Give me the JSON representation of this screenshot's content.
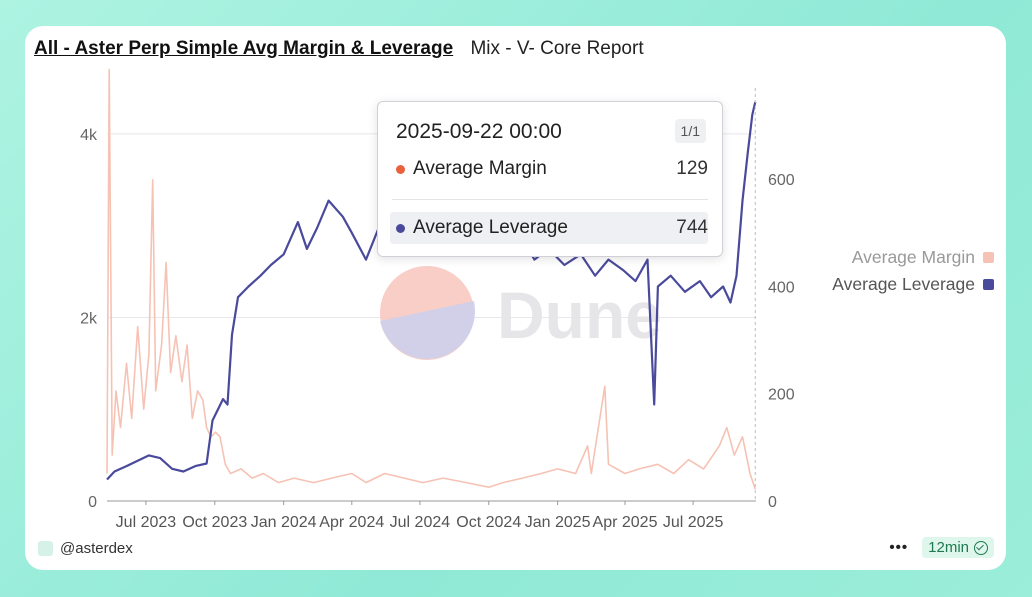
{
  "header": {
    "title": "All - Aster Perp Simple Avg Margin & Leverage",
    "subtitle": "Mix - V- Core Report"
  },
  "watermark": {
    "text": "Dune"
  },
  "legend": [
    {
      "label": "Average Margin",
      "color": "#f6c2b4"
    },
    {
      "label": "Average Leverage",
      "color": "#4a4a9c"
    }
  ],
  "tooltip": {
    "date": "2025-09-22 00:00",
    "page": "1/1",
    "rows": [
      {
        "label": "Average Margin",
        "value": "129",
        "color": "#e8603c"
      },
      {
        "label": "Average Leverage",
        "value": "744",
        "color": "#4a4a9c"
      }
    ]
  },
  "footer": {
    "author": "@asterdex",
    "age": "12min"
  },
  "chart_data": {
    "type": "line",
    "x_tick_labels": [
      "Jul 2023",
      "Oct 2023",
      "Jan 2024",
      "Apr 2024",
      "Jul 2024",
      "Oct 2024",
      "Jan 2025",
      "Apr 2025",
      "Jul 2025"
    ],
    "x_tick_dates": [
      "2023-07-01",
      "2023-10-01",
      "2024-01-01",
      "2024-04-01",
      "2024-07-01",
      "2024-10-01",
      "2025-01-01",
      "2025-04-01",
      "2025-07-01"
    ],
    "x_range": [
      "2023-05-10",
      "2025-09-23"
    ],
    "y_left": {
      "ticks": [
        "0",
        "2k",
        "4k"
      ],
      "tick_values": [
        0,
        2000,
        4000
      ],
      "range": [
        0,
        4500
      ]
    },
    "y_right": {
      "ticks": [
        "0",
        "200",
        "400",
        "600"
      ],
      "tick_values": [
        0,
        200,
        400,
        600
      ],
      "range": [
        0,
        770
      ]
    },
    "series": [
      {
        "name": "Average Margin",
        "axis": "left",
        "color": "#f6c2b4",
        "points": [
          [
            "2023-05-10",
            300
          ],
          [
            "2023-05-13",
            4700
          ],
          [
            "2023-05-17",
            500
          ],
          [
            "2023-05-22",
            1200
          ],
          [
            "2023-05-28",
            800
          ],
          [
            "2023-06-05",
            1500
          ],
          [
            "2023-06-12",
            900
          ],
          [
            "2023-06-20",
            1900
          ],
          [
            "2023-06-28",
            1000
          ],
          [
            "2023-07-05",
            1600
          ],
          [
            "2023-07-10",
            3500
          ],
          [
            "2023-07-14",
            1200
          ],
          [
            "2023-07-22",
            1700
          ],
          [
            "2023-07-28",
            2600
          ],
          [
            "2023-08-03",
            1400
          ],
          [
            "2023-08-10",
            1800
          ],
          [
            "2023-08-18",
            1300
          ],
          [
            "2023-08-25",
            1700
          ],
          [
            "2023-09-01",
            900
          ],
          [
            "2023-09-08",
            1200
          ],
          [
            "2023-09-15",
            1100
          ],
          [
            "2023-09-20",
            800
          ],
          [
            "2023-09-26",
            700
          ],
          [
            "2023-10-02",
            750
          ],
          [
            "2023-10-08",
            700
          ],
          [
            "2023-10-15",
            400
          ],
          [
            "2023-10-22",
            300
          ],
          [
            "2023-11-05",
            350
          ],
          [
            "2023-11-20",
            250
          ],
          [
            "2023-12-05",
            300
          ],
          [
            "2023-12-25",
            200
          ],
          [
            "2024-01-15",
            250
          ],
          [
            "2024-02-10",
            200
          ],
          [
            "2024-03-05",
            250
          ],
          [
            "2024-04-01",
            300
          ],
          [
            "2024-04-20",
            200
          ],
          [
            "2024-05-15",
            300
          ],
          [
            "2024-06-10",
            250
          ],
          [
            "2024-07-05",
            200
          ],
          [
            "2024-08-01",
            250
          ],
          [
            "2024-09-01",
            200
          ],
          [
            "2024-10-01",
            150
          ],
          [
            "2024-10-20",
            200
          ],
          [
            "2024-11-15",
            250
          ],
          [
            "2024-12-10",
            300
          ],
          [
            "2025-01-01",
            350
          ],
          [
            "2025-01-25",
            300
          ],
          [
            "2025-02-10",
            600
          ],
          [
            "2025-02-15",
            300
          ],
          [
            "2025-03-05",
            1250
          ],
          [
            "2025-03-10",
            400
          ],
          [
            "2025-04-01",
            300
          ],
          [
            "2025-04-20",
            350
          ],
          [
            "2025-05-15",
            400
          ],
          [
            "2025-06-05",
            300
          ],
          [
            "2025-06-25",
            450
          ],
          [
            "2025-07-15",
            350
          ],
          [
            "2025-08-05",
            600
          ],
          [
            "2025-08-15",
            800
          ],
          [
            "2025-08-25",
            500
          ],
          [
            "2025-09-05",
            700
          ],
          [
            "2025-09-15",
            300
          ],
          [
            "2025-09-22",
            129
          ]
        ]
      },
      {
        "name": "Average Leverage",
        "axis": "right",
        "color": "#4a4a9c",
        "points": [
          [
            "2023-05-10",
            40
          ],
          [
            "2023-05-20",
            55
          ],
          [
            "2023-06-05",
            65
          ],
          [
            "2023-06-20",
            75
          ],
          [
            "2023-07-05",
            85
          ],
          [
            "2023-07-20",
            80
          ],
          [
            "2023-08-05",
            60
          ],
          [
            "2023-08-20",
            55
          ],
          [
            "2023-09-05",
            65
          ],
          [
            "2023-09-20",
            70
          ],
          [
            "2023-09-28",
            150
          ],
          [
            "2023-10-05",
            170
          ],
          [
            "2023-10-12",
            190
          ],
          [
            "2023-10-18",
            180
          ],
          [
            "2023-10-24",
            310
          ],
          [
            "2023-11-01",
            380
          ],
          [
            "2023-11-15",
            400
          ],
          [
            "2023-12-01",
            420
          ],
          [
            "2023-12-15",
            440
          ],
          [
            "2024-01-01",
            460
          ],
          [
            "2024-01-20",
            520
          ],
          [
            "2024-02-01",
            470
          ],
          [
            "2024-02-15",
            510
          ],
          [
            "2024-03-01",
            560
          ],
          [
            "2024-03-20",
            530
          ],
          [
            "2024-04-01",
            500
          ],
          [
            "2024-04-20",
            450
          ],
          [
            "2024-05-10",
            520
          ],
          [
            "2024-06-01",
            480
          ],
          [
            "2024-06-20",
            530
          ],
          [
            "2024-07-10",
            490
          ],
          [
            "2024-08-01",
            520
          ],
          [
            "2024-08-20",
            470
          ],
          [
            "2024-09-10",
            510
          ],
          [
            "2024-10-01",
            480
          ],
          [
            "2024-10-20",
            460
          ],
          [
            "2024-11-10",
            500
          ],
          [
            "2024-12-01",
            450
          ],
          [
            "2024-12-20",
            470
          ],
          [
            "2025-01-10",
            440
          ],
          [
            "2025-02-01",
            460
          ],
          [
            "2025-02-20",
            420
          ],
          [
            "2025-03-10",
            450
          ],
          [
            "2025-03-30",
            430
          ],
          [
            "2025-04-15",
            410
          ],
          [
            "2025-05-01",
            450
          ],
          [
            "2025-05-10",
            180
          ],
          [
            "2025-05-15",
            400
          ],
          [
            "2025-06-01",
            420
          ],
          [
            "2025-06-20",
            390
          ],
          [
            "2025-07-10",
            410
          ],
          [
            "2025-07-25",
            380
          ],
          [
            "2025-08-10",
            400
          ],
          [
            "2025-08-20",
            370
          ],
          [
            "2025-08-28",
            420
          ],
          [
            "2025-09-05",
            560
          ],
          [
            "2025-09-12",
            650
          ],
          [
            "2025-09-18",
            720
          ],
          [
            "2025-09-22",
            744
          ]
        ]
      }
    ]
  }
}
